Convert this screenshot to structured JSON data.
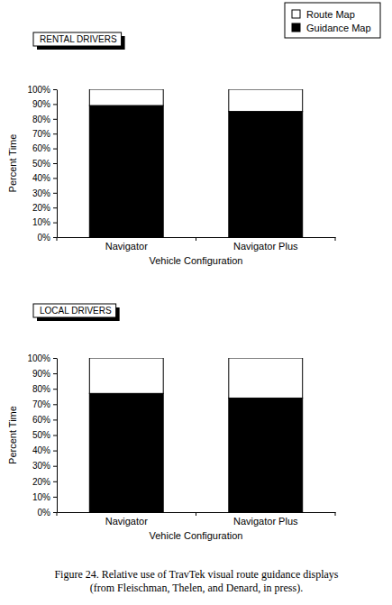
{
  "chart_data": [
    {
      "type": "bar",
      "title": "RENTAL DRIVERS",
      "stacked": true,
      "grid": false,
      "legend": "top-right",
      "x_label": "Vehicle Configuration",
      "y_label": "Percent Time",
      "categories": [
        "Navigator",
        "Navigator Plus"
      ],
      "series": [
        {
          "name": "Guidance Map",
          "color": "#000000",
          "values": [
            89,
            85
          ]
        },
        {
          "name": "Route Map",
          "color": "#ffffff",
          "values": [
            11,
            15
          ]
        }
      ],
      "ylim": [
        0,
        100
      ],
      "yticks": [
        {
          "value": 0,
          "label": "0%"
        },
        {
          "value": 10,
          "label": "10%"
        },
        {
          "value": 20,
          "label": "20%"
        },
        {
          "value": 30,
          "label": "30%"
        },
        {
          "value": 40,
          "label": "40%"
        },
        {
          "value": 50,
          "label": "50%"
        },
        {
          "value": 60,
          "label": "60%"
        },
        {
          "value": 70,
          "label": "70%"
        },
        {
          "value": 80,
          "label": "80%"
        },
        {
          "value": 90,
          "label": "90%"
        },
        {
          "value": 100,
          "label": "100%"
        }
      ]
    },
    {
      "type": "bar",
      "title": "LOCAL DRIVERS",
      "stacked": true,
      "grid": false,
      "x_label": "Vehicle Configuration",
      "y_label": "Percent Time",
      "categories": [
        "Navigator",
        "Navigator Plus"
      ],
      "series": [
        {
          "name": "Guidance Map",
          "color": "#000000",
          "values": [
            77,
            74
          ]
        },
        {
          "name": "Route Map",
          "color": "#ffffff",
          "values": [
            23,
            26
          ]
        }
      ],
      "ylim": [
        0,
        100
      ],
      "yticks": [
        {
          "value": 0,
          "label": "0%"
        },
        {
          "value": 10,
          "label": "10%"
        },
        {
          "value": 20,
          "label": "20%"
        },
        {
          "value": 30,
          "label": "30%"
        },
        {
          "value": 40,
          "label": "40%"
        },
        {
          "value": 50,
          "label": "50%"
        },
        {
          "value": 60,
          "label": "60%"
        },
        {
          "value": 70,
          "label": "70%"
        },
        {
          "value": 80,
          "label": "80%"
        },
        {
          "value": 90,
          "label": "90%"
        },
        {
          "value": 100,
          "label": "100%"
        }
      ]
    }
  ],
  "caption": [
    "Figure 24.  Relative use of TravTek visual route guidance displays",
    "(from Fleischman, Thelen, and Denard, in press)."
  ]
}
